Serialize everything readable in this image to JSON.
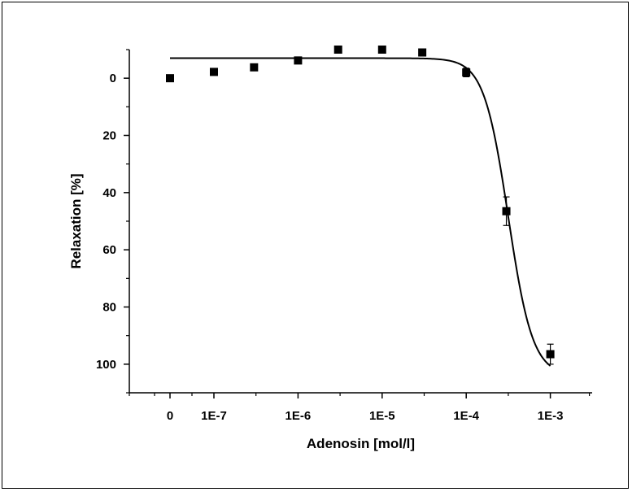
{
  "chart_data": {
    "type": "scatter",
    "title": "",
    "xlabel": "Adenosin [mol/l]",
    "ylabel": "Relaxation [%]",
    "x_scale": "log (broken axis; first tick is 0)",
    "x_tick_labels": [
      "0",
      "1E-7",
      "1E-6",
      "1E-5",
      "1E-4",
      "1E-3"
    ],
    "y_tick_labels": [
      "0",
      "20",
      "40",
      "60",
      "80",
      "100"
    ],
    "y_inverted": true,
    "ylim": [
      -10,
      110
    ],
    "grid": false,
    "legend": "none",
    "series": [
      {
        "marker": "filled-square",
        "x": [
          "0",
          "1E-7",
          "3E-7",
          "1E-6",
          "3E-6",
          "1E-5",
          "3E-5",
          "1E-4",
          "3E-4",
          "1E-3"
        ],
        "y": [
          0,
          -2.2,
          -3.8,
          -6.2,
          -10,
          -10,
          -9,
          -2,
          46.5,
          96.5
        ],
        "error": [
          0,
          0,
          0,
          0,
          1.2,
          0,
          0,
          1.5,
          5,
          3.5
        ]
      }
    ],
    "fit_curve": {
      "type": "sigmoid",
      "top": -7,
      "bottom": 104,
      "log_ec50": -3.5,
      "hill_slope": 3,
      "x_from": "0",
      "x_to": "1E-3"
    },
    "colors": {
      "marker": "#000000",
      "curve": "#000000",
      "axis": "#000000"
    }
  }
}
